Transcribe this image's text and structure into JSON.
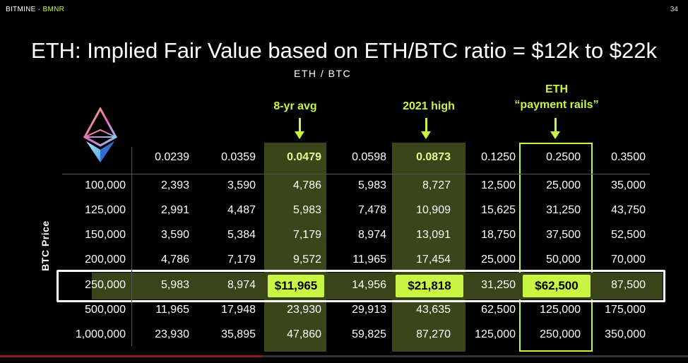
{
  "brand": {
    "name": "BITMINE",
    "separator": "·",
    "ticker": "BMNR"
  },
  "slide_number": "34",
  "title": "ETH: Implied Fair Value based on ETH/BTC ratio = $12k to $22k",
  "axis_x_label": "ETH / BTC",
  "axis_y_label": "BTC Price",
  "callouts": [
    {
      "text": "8-yr avg"
    },
    {
      "text": "2021 high"
    },
    {
      "line1": "ETH",
      "line2": "“payment rails”"
    }
  ],
  "columns": [
    "0.0239",
    "0.0359",
    "0.0479",
    "0.0598",
    "0.0873",
    "0.1250",
    "0.2500",
    "0.3500"
  ],
  "rows": [
    {
      "btc": "100,000",
      "values": [
        "2,393",
        "3,590",
        "4,786",
        "5,983",
        "8,727",
        "12,500",
        "25,000",
        "35,000"
      ]
    },
    {
      "btc": "125,000",
      "values": [
        "2,991",
        "4,487",
        "5,983",
        "7,478",
        "10,909",
        "15,625",
        "31,250",
        "43,750"
      ]
    },
    {
      "btc": "150,000",
      "values": [
        "3,590",
        "5,384",
        "7,179",
        "8,974",
        "13,091",
        "18,750",
        "37,500",
        "52,500"
      ]
    },
    {
      "btc": "200,000",
      "values": [
        "4,786",
        "7,179",
        "9,572",
        "11,965",
        "17,454",
        "25,000",
        "50,000",
        "70,000"
      ]
    },
    {
      "btc": "250,000",
      "values": [
        "5,983",
        "8,974",
        "$11,965",
        "14,956",
        "$21,818",
        "31,250",
        "$62,500",
        "87,500"
      ]
    },
    {
      "btc": "500,000",
      "values": [
        "11,965",
        "17,948",
        "23,930",
        "29,913",
        "43,635",
        "62,500",
        "125,000",
        "175,000"
      ]
    },
    {
      "btc": "1,000,000",
      "values": [
        "23,930",
        "35,895",
        "47,860",
        "59,825",
        "87,270",
        "125,000",
        "250,000",
        "350,000"
      ]
    }
  ],
  "highlight_color": "#c8f542",
  "icons": {
    "logo": "ethereum-logo-icon"
  },
  "slide_progress": 0.38
}
